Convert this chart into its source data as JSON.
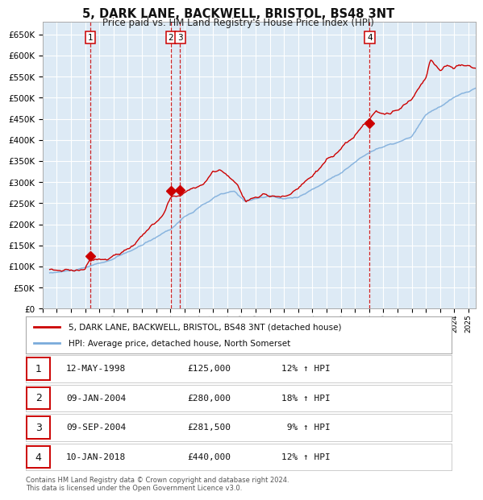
{
  "title": "5, DARK LANE, BACKWELL, BRISTOL, BS48 3NT",
  "subtitle": "Price paid vs. HM Land Registry's House Price Index (HPI)",
  "hpi_color": "#7aabdb",
  "price_color": "#cc0000",
  "bg_color": "#ddeaf5",
  "grid_color": "#ffffff",
  "ylim": [
    0,
    680000
  ],
  "yticks": [
    0,
    50000,
    100000,
    150000,
    200000,
    250000,
    300000,
    350000,
    400000,
    450000,
    500000,
    550000,
    600000,
    650000
  ],
  "transactions": [
    {
      "num": "1",
      "date_decimal": 1998.36,
      "price": 125000
    },
    {
      "num": "2",
      "date_decimal": 2004.03,
      "price": 280000
    },
    {
      "num": "3",
      "date_decimal": 2004.69,
      "price": 281500
    },
    {
      "num": "4",
      "date_decimal": 2018.03,
      "price": 440000
    }
  ],
  "legend_entries": [
    "5, DARK LANE, BACKWELL, BRISTOL, BS48 3NT (detached house)",
    "HPI: Average price, detached house, North Somerset"
  ],
  "table_rows": [
    {
      "num": "1",
      "date": "12-MAY-1998",
      "price": "£125,000",
      "pct": "12% ↑ HPI"
    },
    {
      "num": "2",
      "date": "09-JAN-2004",
      "price": "£280,000",
      "pct": "18% ↑ HPI"
    },
    {
      "num": "3",
      "date": "09-SEP-2004",
      "price": "£281,500",
      "pct": " 9% ↑ HPI"
    },
    {
      "num": "4",
      "date": "10-JAN-2018",
      "price": "£440,000",
      "pct": "12% ↑ HPI"
    }
  ],
  "footer": "Contains HM Land Registry data © Crown copyright and database right 2024.\nThis data is licensed under the Open Government Licence v3.0.",
  "x_start": 1995.5,
  "x_end": 2025.5,
  "x_ticks": [
    1995,
    1996,
    1997,
    1998,
    1999,
    2000,
    2001,
    2002,
    2003,
    2004,
    2005,
    2006,
    2007,
    2008,
    2009,
    2010,
    2011,
    2012,
    2013,
    2014,
    2015,
    2016,
    2017,
    2018,
    2019,
    2020,
    2021,
    2022,
    2023,
    2024,
    2025
  ]
}
